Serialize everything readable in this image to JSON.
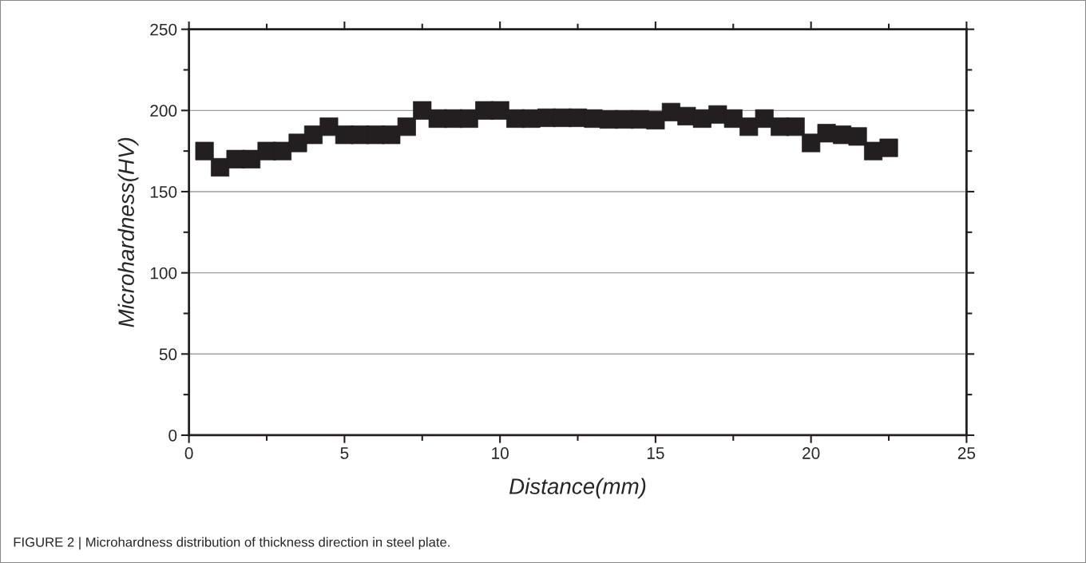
{
  "chart_data": {
    "type": "scatter",
    "xlabel": "Distance(mm)",
    "ylabel": "Microhardness(HV)",
    "x": [
      0.5,
      1,
      1.5,
      2,
      2.5,
      3,
      3.5,
      4,
      4.5,
      5,
      5.5,
      6,
      6.5,
      7,
      7.5,
      8,
      8.5,
      9,
      9.5,
      10,
      10.5,
      11,
      11.5,
      12,
      12.5,
      13,
      13.5,
      14,
      14.5,
      15,
      15.5,
      16,
      16.5,
      17,
      17.5,
      18,
      18.5,
      19,
      19.5,
      20,
      20.5,
      21,
      21.5,
      22,
      22.5
    ],
    "series": [
      {
        "color": "#231f20",
        "values": [
          175,
          165,
          170,
          170,
          175,
          175,
          180,
          185,
          190,
          185,
          185,
          185,
          185,
          190,
          200,
          195,
          195,
          195,
          200,
          200,
          195,
          195,
          195.5,
          195.5,
          195.5,
          195,
          194.5,
          194.5,
          194.5,
          194,
          199,
          196.5,
          195,
          197.5,
          195,
          190,
          195,
          190,
          190,
          180,
          186,
          185,
          184,
          175,
          177
        ]
      }
    ],
    "xlim": [
      0,
      25
    ],
    "xticks": [
      0,
      5,
      10,
      15,
      20,
      25
    ],
    "ylim": [
      0,
      250
    ],
    "yticks": [
      0,
      50,
      100,
      150,
      200,
      250
    ],
    "grid": "y",
    "marker": "square",
    "legend": false,
    "annotations": [
      "FIGURE 2 | Microhardness distribution of thickness direction in steel plate."
    ]
  }
}
